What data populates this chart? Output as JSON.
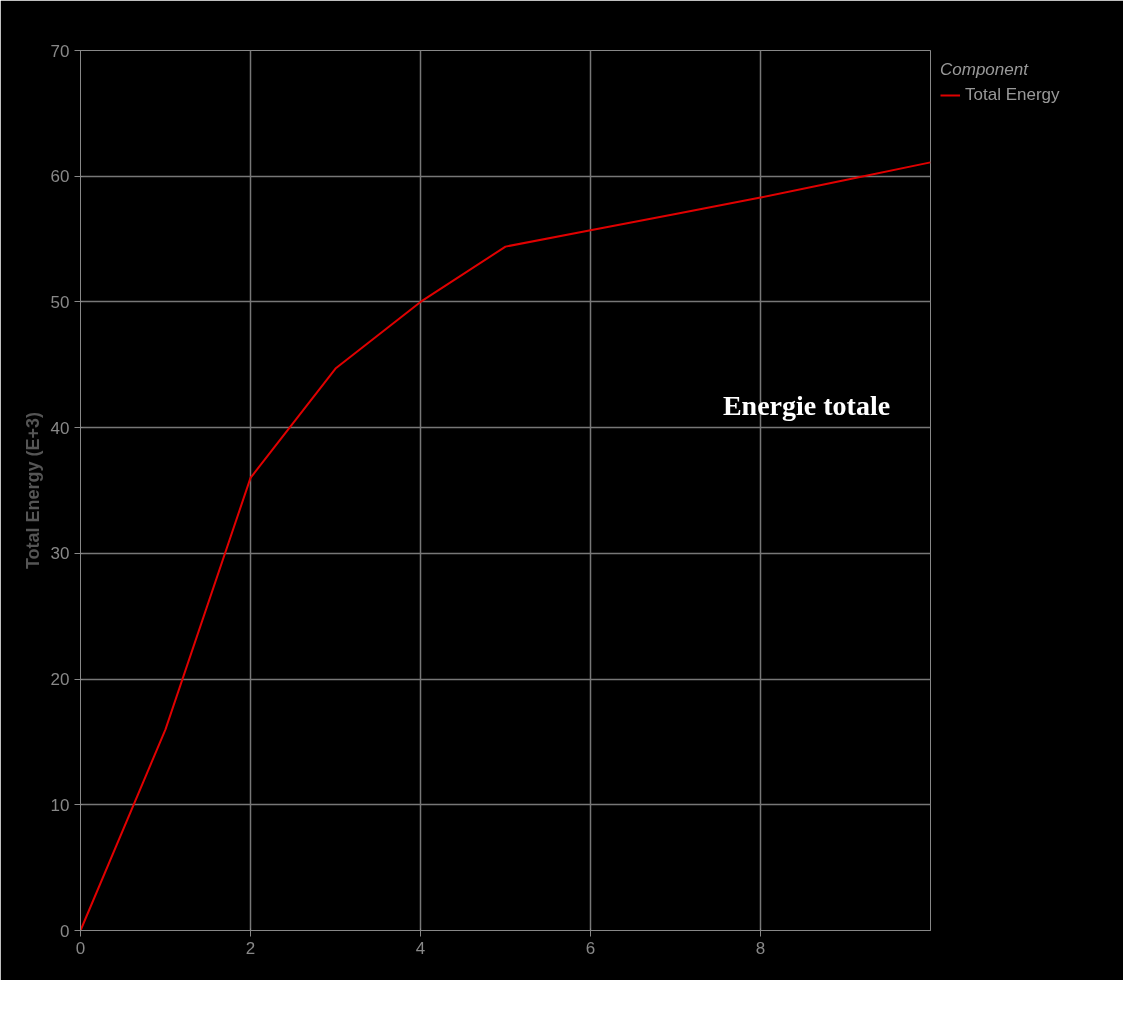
{
  "chart_data": {
    "type": "line",
    "ylabel": "Total Energy (E+3)",
    "legend_title": "Component",
    "x": [
      0,
      1,
      2,
      3,
      4,
      5,
      6,
      7,
      8,
      9,
      10
    ],
    "series": [
      {
        "name": "Total Energy",
        "color": "#e00000",
        "values": [
          0,
          16,
          36,
          44.7,
          50,
          54.4,
          55.7,
          57,
          58.3,
          59.7,
          61.1
        ]
      }
    ],
    "xlim": [
      0,
      10
    ],
    "xticks": [
      0,
      2,
      4,
      6,
      8
    ],
    "ylim": [
      0,
      70
    ],
    "yticks": [
      0,
      10,
      20,
      30,
      40,
      50,
      60,
      70
    ],
    "grid": true,
    "legend": "top right",
    "marker": "none",
    "line_style": "solid",
    "annotations": [
      "Energie totale"
    ]
  }
}
